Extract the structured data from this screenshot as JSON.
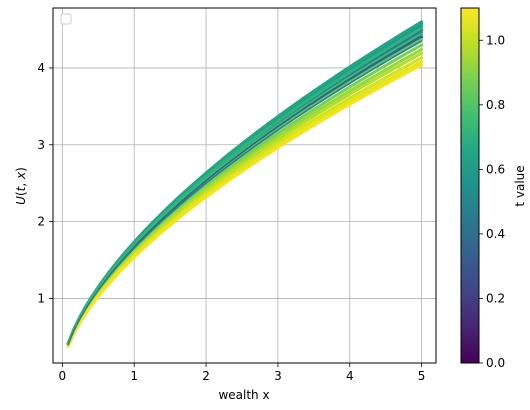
{
  "chart_data": {
    "type": "line",
    "title": "",
    "xlabel": "wealth x",
    "ylabel": "U(t, x)",
    "xlim": [
      -0.13,
      5.2
    ],
    "ylim": [
      0.16,
      4.78
    ],
    "xticks": [
      "0",
      "1",
      "2",
      "3",
      "4",
      "5"
    ],
    "yticks": [
      "1",
      "2",
      "3",
      "4"
    ],
    "grid": true,
    "legend": "top-left (empty)",
    "colormap": "viridis",
    "colorbar": {
      "label": "t value",
      "range": [
        0.0,
        1.1
      ],
      "ticks": [
        "0.0",
        "0.2",
        "0.4",
        "0.6",
        "0.8",
        "1.0"
      ]
    },
    "x_start": 0.08,
    "x_end": 5.0,
    "series": [
      {
        "t": 0.3,
        "endpoints": [
          0.4,
          4.4
        ],
        "color": "#32628d"
      },
      {
        "t": 0.35,
        "endpoints": [
          0.4,
          4.45
        ],
        "color": "#2c728e"
      },
      {
        "t": 0.4,
        "endpoints": [
          0.4,
          4.49
        ],
        "color": "#277f8e"
      },
      {
        "t": 0.45,
        "endpoints": [
          0.41,
          4.52
        ],
        "color": "#22898e"
      },
      {
        "t": 0.5,
        "endpoints": [
          0.41,
          4.55
        ],
        "color": "#1f958b"
      },
      {
        "t": 0.55,
        "endpoints": [
          0.41,
          4.58
        ],
        "color": "#1f9e89"
      },
      {
        "t": 0.6,
        "endpoints": [
          0.41,
          4.6
        ],
        "color": "#21a685"
      },
      {
        "t": 0.65,
        "endpoints": [
          0.4,
          4.52
        ],
        "color": "#2eb37c"
      },
      {
        "t": 0.7,
        "endpoints": [
          0.4,
          4.44
        ],
        "color": "#3fbc73"
      },
      {
        "t": 0.75,
        "endpoints": [
          0.4,
          4.37
        ],
        "color": "#5ec962"
      },
      {
        "t": 0.8,
        "endpoints": [
          0.39,
          4.3
        ],
        "color": "#7ad151"
      },
      {
        "t": 0.85,
        "endpoints": [
          0.39,
          4.24
        ],
        "color": "#95d840"
      },
      {
        "t": 0.9,
        "endpoints": [
          0.39,
          4.19
        ],
        "color": "#b5de2b"
      },
      {
        "t": 0.95,
        "endpoints": [
          0.38,
          4.13
        ],
        "color": "#d2e21b"
      },
      {
        "t": 1.0,
        "endpoints": [
          0.38,
          4.08
        ],
        "color": "#e5e419"
      },
      {
        "t": 1.05,
        "endpoints": [
          0.38,
          4.04
        ],
        "color": "#f1e51d"
      }
    ],
    "highlight_series": [
      {
        "t": 0.35,
        "endpoints": [
          0.4,
          4.42
        ],
        "color": "#33638d"
      },
      {
        "t": 0.48,
        "endpoints": [
          0.41,
          4.35
        ],
        "color": "#26828e"
      }
    ]
  }
}
